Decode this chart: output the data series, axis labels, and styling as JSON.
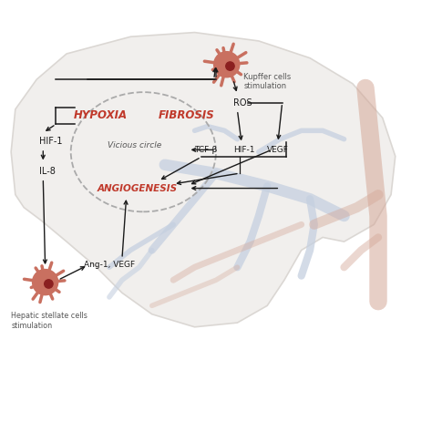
{
  "bg_color": "#ffffff",
  "liver_color": "#f0eeec",
  "liver_border": "#d8d4d0",
  "vessel_blue": "#c5d0e0",
  "vessel_pink": "#d4a898",
  "red_text_color": "#c0392b",
  "black_text_color": "#1a1a1a",
  "gray_text_color": "#555555",
  "cell_color": "#c97060",
  "arrow_color": "#1a1a1a",
  "dashed_circle_color": "#aaaaaa",
  "labels": {
    "hypoxia": "HYPOXIA",
    "fibrosis": "FIBROSIS",
    "angiogenesis": "ANGIOGENESIS",
    "hif1": "HIF-1",
    "il8": "IL-8",
    "ros": "ROS",
    "tgfb": "TCF-β",
    "hif1b": "HIF-1",
    "vegf": "VEGF",
    "ang1vegf": "Ang-1, VEGF",
    "kupffer": "Kupffer cells\nstimulation",
    "hepatic": "Hepatic stellate cells\nstimulation",
    "vicious": "Vicious circle"
  }
}
